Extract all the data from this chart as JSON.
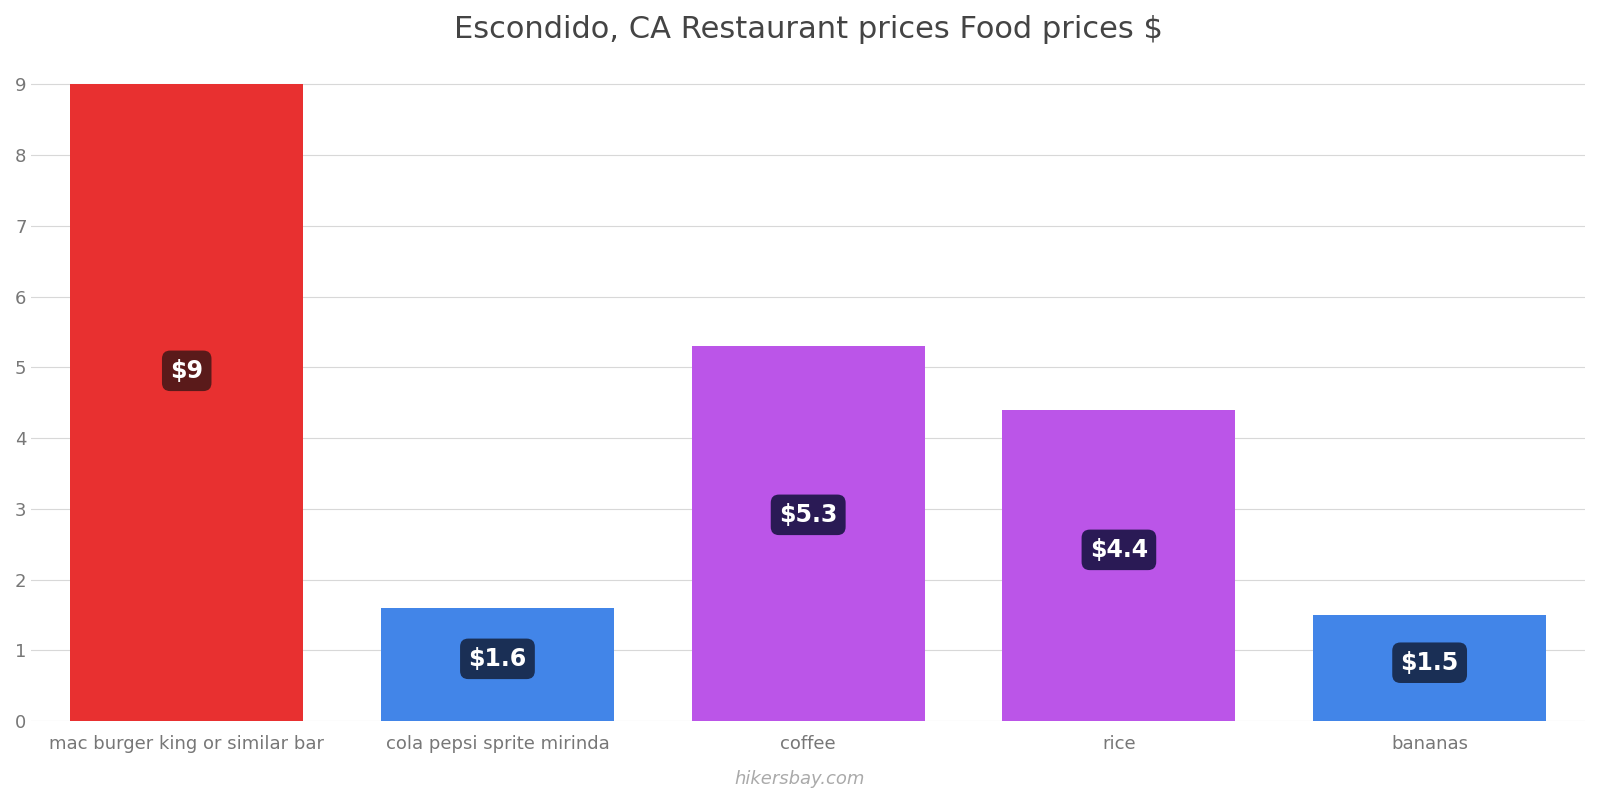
{
  "title": "Escondido, CA Restaurant prices Food prices $",
  "categories": [
    "mac burger king or similar bar",
    "cola pepsi sprite mirinda",
    "coffee",
    "rice",
    "bananas"
  ],
  "values": [
    9.0,
    1.6,
    5.3,
    4.4,
    1.5
  ],
  "bar_colors": [
    "#e83030",
    "#4285e8",
    "#bb55e8",
    "#bb55e8",
    "#4285e8"
  ],
  "label_texts": [
    "$9",
    "$1.6",
    "$5.3",
    "$4.4",
    "$1.5"
  ],
  "label_bg_colors": [
    "#5a1a1a",
    "#1a2f55",
    "#2a1a55",
    "#2a1a55",
    "#1a2f55"
  ],
  "ylim": [
    0,
    9.3
  ],
  "yticks": [
    0,
    1,
    2,
    3,
    4,
    5,
    6,
    7,
    8,
    9
  ],
  "watermark": "hikersbay.com",
  "title_fontsize": 22,
  "tick_fontsize": 13,
  "label_fontsize": 17,
  "background_color": "#ffffff",
  "grid_color": "#d8d8d8"
}
